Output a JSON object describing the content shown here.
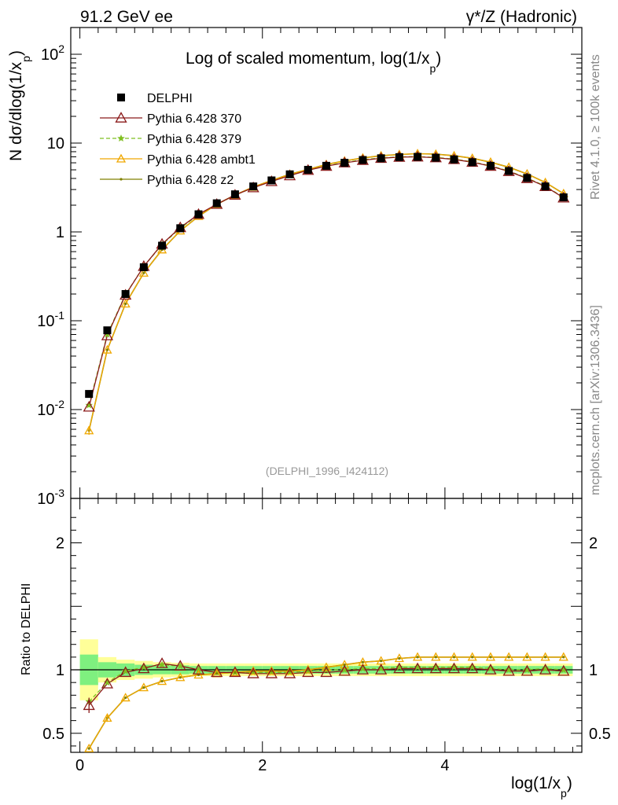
{
  "header": {
    "left": "91.2 GeV ee",
    "right": "γ*/Z (Hadronic)"
  },
  "side_text": {
    "rivet": "Rivet 4.1.0, ≥ 100k events",
    "mcplots": "mcplots.cern.ch [arXiv:1306.3436]"
  },
  "colors": {
    "data": "#000000",
    "p370": "#8b1a1a",
    "p379": "#7fbf20",
    "ambt1": "#f0a800",
    "z2": "#808000",
    "band_inner": "#7ff07f",
    "band_outer": "#ffff99"
  },
  "chart_data": [
    {
      "type": "line",
      "panel": "main",
      "title": "Log of scaled momentum, log(1/x",
      "title_sub": "p",
      "title_end": ")",
      "ylabel_main": "N  dσ/dlog(1/x",
      "ylabel_sub": "p",
      "ylabel_end": ")",
      "yscale": "log",
      "ylim": [
        0.001,
        200
      ],
      "xlim": [
        -0.1,
        5.5
      ],
      "ytick_labels": [
        {
          "base": "10",
          "exp": "-3",
          "v": 0.001
        },
        {
          "base": "10",
          "exp": "-2",
          "v": 0.01
        },
        {
          "base": "10",
          "exp": "-1",
          "v": 0.1
        },
        {
          "base": "1",
          "exp": "",
          "v": 1
        },
        {
          "base": "10",
          "exp": "",
          "v": 10
        },
        {
          "base": "10",
          "exp": "2",
          "v": 100
        }
      ],
      "watermark": "(DELPHI_1996_I424112)",
      "legend_position": "top-left",
      "legend": [
        {
          "label": "DELPHI",
          "key": "data"
        },
        {
          "label": "Pythia 6.428 370",
          "key": "p370"
        },
        {
          "label": "Pythia 6.428 379",
          "key": "p379"
        },
        {
          "label": "Pythia 6.428 ambt1",
          "key": "ambt1"
        },
        {
          "label": "Pythia 6.428 z2",
          "key": "z2"
        }
      ],
      "x": [
        0.1,
        0.3,
        0.5,
        0.7,
        0.9,
        1.1,
        1.3,
        1.5,
        1.7,
        1.9,
        2.1,
        2.3,
        2.5,
        2.7,
        2.9,
        3.1,
        3.3,
        3.5,
        3.7,
        3.9,
        4.1,
        4.3,
        4.5,
        4.7,
        4.9,
        5.1,
        5.3
      ],
      "series": [
        {
          "name": "DELPHI",
          "key": "data",
          "values": [
            0.015,
            0.078,
            0.2,
            0.4,
            0.7,
            1.1,
            1.58,
            2.1,
            2.65,
            3.25,
            3.8,
            4.45,
            5.0,
            5.55,
            6.0,
            6.45,
            6.75,
            6.95,
            7.0,
            6.85,
            6.55,
            6.1,
            5.55,
            4.85,
            4.05,
            3.25,
            2.45
          ]
        },
        {
          "name": "Pythia 6.428 370",
          "key": "p370",
          "values": [
            0.0107,
            0.068,
            0.195,
            0.41,
            0.73,
            1.12,
            1.58,
            2.05,
            2.6,
            3.15,
            3.7,
            4.3,
            4.95,
            5.5,
            6.0,
            6.4,
            6.75,
            6.95,
            7.0,
            6.85,
            6.55,
            6.1,
            5.5,
            4.8,
            4.0,
            3.25,
            2.42
          ]
        },
        {
          "name": "Pythia 6.428 379",
          "key": "p379",
          "values": [
            0.0112,
            0.07,
            0.198,
            0.41,
            0.72,
            1.1,
            1.56,
            2.04,
            2.6,
            3.15,
            3.7,
            4.32,
            4.95,
            5.55,
            6.05,
            6.5,
            6.8,
            7.0,
            7.05,
            6.9,
            6.6,
            6.15,
            5.55,
            4.85,
            4.05,
            3.28,
            2.45
          ]
        },
        {
          "name": "Pythia 6.428 ambt1",
          "key": "ambt1",
          "values": [
            0.0058,
            0.047,
            0.155,
            0.345,
            0.63,
            1.03,
            1.5,
            2.05,
            2.6,
            3.2,
            3.8,
            4.45,
            5.05,
            5.75,
            6.3,
            6.8,
            7.2,
            7.45,
            7.6,
            7.5,
            7.2,
            6.75,
            6.1,
            5.35,
            4.5,
            3.6,
            2.7
          ]
        },
        {
          "name": "Pythia 6.428 z2",
          "key": "z2",
          "values": [
            0.0058,
            0.047,
            0.155,
            0.345,
            0.63,
            1.03,
            1.5,
            2.05,
            2.6,
            3.2,
            3.8,
            4.45,
            5.05,
            5.75,
            6.3,
            6.8,
            7.2,
            7.45,
            7.6,
            7.5,
            7.2,
            6.75,
            6.1,
            5.35,
            4.5,
            3.6,
            2.7
          ]
        }
      ]
    },
    {
      "type": "line",
      "panel": "ratio",
      "ylabel": "Ratio to DELPHI",
      "xlabel": "log(1/x",
      "xlabel_sub": "p",
      "xlabel_end": ")",
      "ylim": [
        0.35,
        2.35
      ],
      "xlim": [
        -0.1,
        5.5
      ],
      "xtick_labels": [
        "0",
        "2",
        "4"
      ],
      "xtick_values": [
        0,
        2,
        4
      ],
      "ytick_labels": [
        "0.5",
        "1",
        "2"
      ],
      "ytick_values": [
        0.5,
        1,
        2
      ],
      "bins": [
        [
          0.0,
          0.2
        ],
        [
          0.2,
          0.4
        ],
        [
          0.4,
          0.6
        ],
        [
          0.6,
          0.8
        ],
        [
          0.8,
          1.0
        ],
        [
          1.0,
          1.2
        ],
        [
          1.2,
          1.4
        ],
        [
          1.4,
          1.6
        ],
        [
          1.6,
          1.8
        ],
        [
          1.8,
          2.0
        ],
        [
          2.0,
          2.2
        ],
        [
          2.2,
          2.4
        ],
        [
          2.4,
          2.6
        ],
        [
          2.6,
          2.8
        ],
        [
          2.8,
          3.0
        ],
        [
          3.0,
          3.2
        ],
        [
          3.2,
          3.4
        ],
        [
          3.4,
          3.6
        ],
        [
          3.6,
          3.8
        ],
        [
          3.8,
          4.0
        ],
        [
          4.0,
          4.2
        ],
        [
          4.2,
          4.4
        ],
        [
          4.4,
          4.6
        ],
        [
          4.6,
          4.8
        ],
        [
          4.8,
          5.0
        ],
        [
          5.0,
          5.2
        ],
        [
          5.2,
          5.4
        ]
      ],
      "band_inner": [
        0.12,
        0.06,
        0.05,
        0.04,
        0.035,
        0.035,
        0.03,
        0.03,
        0.03,
        0.03,
        0.03,
        0.03,
        0.03,
        0.03,
        0.03,
        0.03,
        0.03,
        0.03,
        0.03,
        0.03,
        0.03,
        0.03,
        0.03,
        0.03,
        0.03,
        0.03,
        0.03
      ],
      "band_outer": [
        0.24,
        0.1,
        0.08,
        0.07,
        0.06,
        0.055,
        0.05,
        0.05,
        0.05,
        0.05,
        0.05,
        0.05,
        0.05,
        0.05,
        0.05,
        0.05,
        0.05,
        0.05,
        0.05,
        0.05,
        0.05,
        0.05,
        0.05,
        0.05,
        0.05,
        0.05,
        0.05
      ],
      "x": [
        0.1,
        0.3,
        0.5,
        0.7,
        0.9,
        1.1,
        1.3,
        1.5,
        1.7,
        1.9,
        2.1,
        2.3,
        2.5,
        2.7,
        2.9,
        3.1,
        3.3,
        3.5,
        3.7,
        3.9,
        4.1,
        4.3,
        4.5,
        4.7,
        4.9,
        5.1,
        5.3
      ],
      "series": [
        {
          "name": "Pythia 6.428 370",
          "key": "p370",
          "values": [
            0.72,
            0.89,
            0.98,
            1.01,
            1.05,
            1.03,
            1.0,
            0.98,
            0.98,
            0.97,
            0.97,
            0.97,
            0.98,
            0.98,
            0.99,
            1.0,
            1.0,
            1.01,
            1.01,
            1.01,
            1.01,
            1.01,
            1.0,
            0.99,
            0.99,
            1.0,
            0.99
          ]
        },
        {
          "name": "Pythia 6.428 379",
          "key": "p379",
          "values": [
            0.75,
            0.9,
            0.99,
            1.02,
            1.04,
            1.03,
            1.0,
            0.98,
            0.98,
            0.98,
            0.98,
            0.98,
            0.99,
            1.0,
            1.0,
            1.01,
            1.01,
            1.02,
            1.02,
            1.02,
            1.02,
            1.02,
            1.01,
            1.0,
            1.0,
            1.01,
            1.0
          ]
        },
        {
          "name": "Pythia 6.428 ambt1",
          "key": "ambt1",
          "values": [
            0.38,
            0.62,
            0.78,
            0.86,
            0.91,
            0.94,
            0.96,
            0.97,
            0.98,
            0.99,
            0.99,
            0.99,
            1.0,
            1.02,
            1.04,
            1.06,
            1.07,
            1.09,
            1.1,
            1.1,
            1.1,
            1.1,
            1.1,
            1.1,
            1.1,
            1.1,
            1.1
          ]
        },
        {
          "name": "Pythia 6.428 z2",
          "key": "z2",
          "values": [
            0.38,
            0.62,
            0.78,
            0.86,
            0.91,
            0.94,
            0.96,
            0.97,
            0.98,
            0.99,
            0.99,
            0.99,
            1.0,
            1.02,
            1.04,
            1.06,
            1.07,
            1.09,
            1.1,
            1.1,
            1.1,
            1.1,
            1.1,
            1.1,
            1.1,
            1.1,
            1.1
          ]
        }
      ]
    }
  ]
}
